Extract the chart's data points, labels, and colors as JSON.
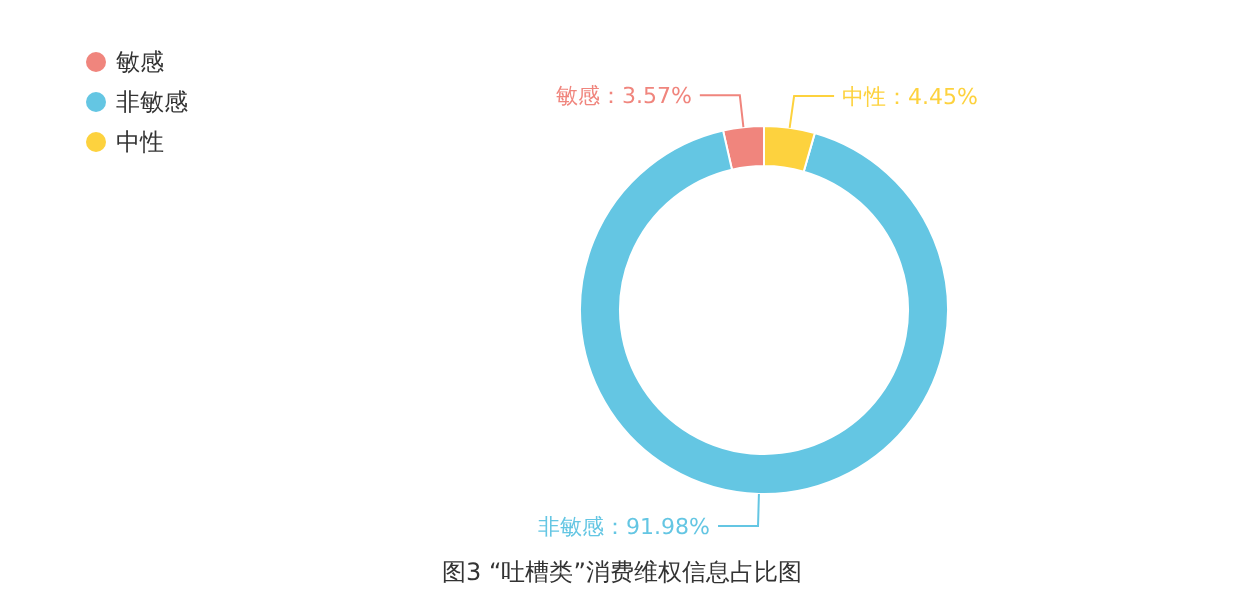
{
  "chart_data": {
    "type": "donut",
    "title": "图3 “吐槽类”消费维权信息占比图",
    "categories": [
      "敏感",
      "非敏感",
      "中性"
    ],
    "values": [
      3.57,
      91.98,
      4.45
    ],
    "value_labels": [
      "敏感：3.57%",
      "非敏感：91.98%",
      "中性：4.45%"
    ],
    "colors": [
      "#f0857d",
      "#64c6e3",
      "#fdd23e"
    ],
    "legend": "top left"
  }
}
